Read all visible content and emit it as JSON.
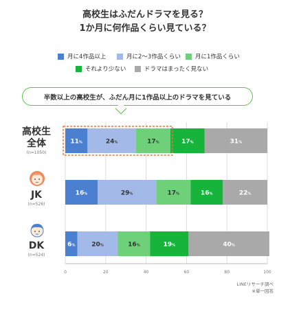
{
  "title": {
    "line1": "高校生はふだんドラマを見る？",
    "line2": "1か月に何作品くらい見ている？"
  },
  "legend": [
    {
      "label": "月に4作品以上",
      "color": "#4b7fcf"
    },
    {
      "label": "月に2〜3作品くらい",
      "color": "#a3b9e8"
    },
    {
      "label": "月に1作品くらい",
      "color": "#6fd07a"
    },
    {
      "label": "それより少ない",
      "color": "#16b43a"
    },
    {
      "label": "ドラマはまったく見ない",
      "color": "#a9a9a9"
    }
  ],
  "callout": "半数以上の高校生が、ふだん月に1作品以上のドラマを見ている",
  "groups": [
    {
      "label_line1": "高校生",
      "label_line2": "全体",
      "n": "(n=1050)"
    },
    {
      "label_line1": "JK",
      "label_line2": "",
      "n": "(n=526)"
    },
    {
      "label_line1": "DK",
      "label_line2": "",
      "n": "(n=524)"
    }
  ],
  "chart_data": {
    "type": "bar",
    "orientation": "horizontal",
    "stacked": true,
    "categories": [
      "高校生全体",
      "JK",
      "DK"
    ],
    "series": [
      {
        "name": "月に4作品以上",
        "values": [
          11,
          16,
          6
        ],
        "color": "#4b7fcf"
      },
      {
        "name": "月に2〜3作品くらい",
        "values": [
          24,
          29,
          20
        ],
        "color": "#a3b9e8"
      },
      {
        "name": "月に1作品くらい",
        "values": [
          17,
          17,
          16
        ],
        "color": "#6fd07a"
      },
      {
        "name": "それより少ない",
        "values": [
          17,
          16,
          19
        ],
        "color": "#16b43a"
      },
      {
        "name": "ドラマはまったく見ない",
        "values": [
          31,
          22,
          40
        ],
        "color": "#a9a9a9"
      }
    ],
    "unit_suffix": "%",
    "xlim": [
      0,
      100
    ],
    "xticks": [
      0,
      20,
      40,
      60,
      80,
      100
    ],
    "highlight": {
      "category": "高校生全体",
      "series_through": 3,
      "style": "dashed",
      "color": "#e8743b"
    }
  },
  "source": {
    "line1": "LINEリサーチ調べ",
    "line2": "※単一回答"
  }
}
